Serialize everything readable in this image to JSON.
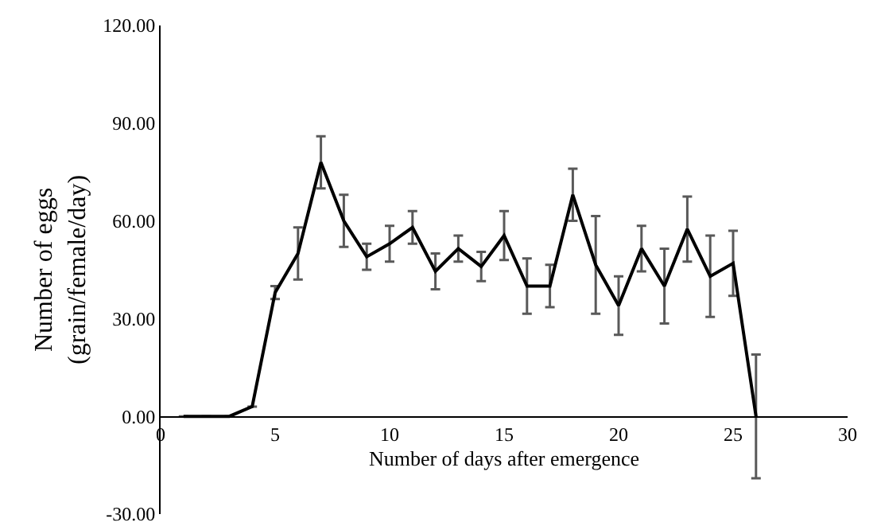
{
  "chart_data": {
    "type": "line",
    "xlabel": "Number of days after emergence",
    "ylabel": "Number of eggs\n(grain/female/day)",
    "x": [
      1,
      2,
      3,
      4,
      5,
      6,
      7,
      8,
      9,
      10,
      11,
      12,
      13,
      14,
      15,
      16,
      17,
      18,
      19,
      20,
      21,
      22,
      23,
      24,
      25,
      26
    ],
    "series": [
      {
        "color": "#000000",
        "values": [
          0,
          0,
          0,
          3,
          38,
          50,
          78,
          60,
          49,
          53,
          58,
          44.5,
          51.5,
          46,
          55.5,
          40,
          40,
          68,
          46.5,
          34,
          51.5,
          40,
          57.5,
          43,
          47,
          0
        ],
        "errors": [
          null,
          null,
          null,
          null,
          2,
          8,
          8,
          8,
          4,
          5.5,
          5,
          5.5,
          4,
          4.5,
          7.5,
          8.5,
          6.5,
          8,
          15,
          9,
          7,
          11.5,
          10,
          12.5,
          10,
          19
        ]
      }
    ],
    "xlim": [
      0,
      30
    ],
    "xticks": [
      0,
      5,
      10,
      15,
      20,
      25,
      30
    ],
    "ylim": [
      -30,
      120
    ],
    "yticks": [
      {
        "value": -30,
        "label": "-30.00"
      },
      {
        "value": 0,
        "label": "0.00"
      },
      {
        "value": 30,
        "label": "30.00"
      },
      {
        "value": 60,
        "label": "60.00"
      },
      {
        "value": 90,
        "label": "90.00"
      },
      {
        "value": 120,
        "label": "120.00"
      }
    ],
    "marker": "none",
    "line_style": "solid"
  }
}
